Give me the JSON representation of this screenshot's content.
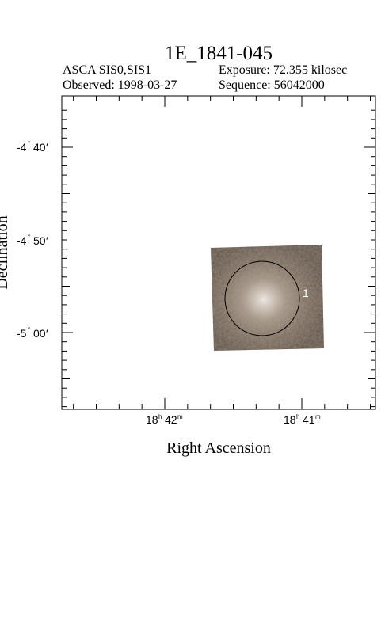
{
  "plot": {
    "title": "1E_1841-045",
    "mission": "ASCA SIS0,SIS1",
    "exposure": "Exposure: 72.355 kilosec",
    "observed": "Observed: 1998-03-27",
    "sequence": "Sequence: 56042000",
    "x_axis_label": "Right Ascension",
    "y_axis_label": "Declination",
    "ra_ticks": [
      {
        "h": "18",
        "h_unit": "h",
        "m": "42",
        "m_unit": "m"
      },
      {
        "h": "18",
        "h_unit": "h",
        "m": "41",
        "m_unit": "m"
      }
    ],
    "dec_ticks": [
      {
        "deg": "-4",
        "min": "40",
        "unit_deg": "°",
        "unit_min": "′"
      },
      {
        "deg": "-4",
        "min": "50",
        "unit_deg": "°",
        "unit_min": "′"
      },
      {
        "deg": "-5",
        "min": "00",
        "unit_deg": "°",
        "unit_min": "′"
      }
    ],
    "source_region_label": "1",
    "colors": {
      "image_dark": "#6b5a4a",
      "image_mid": "#a49484",
      "image_bright": "#f4f0ea",
      "circle": "#000000"
    }
  }
}
